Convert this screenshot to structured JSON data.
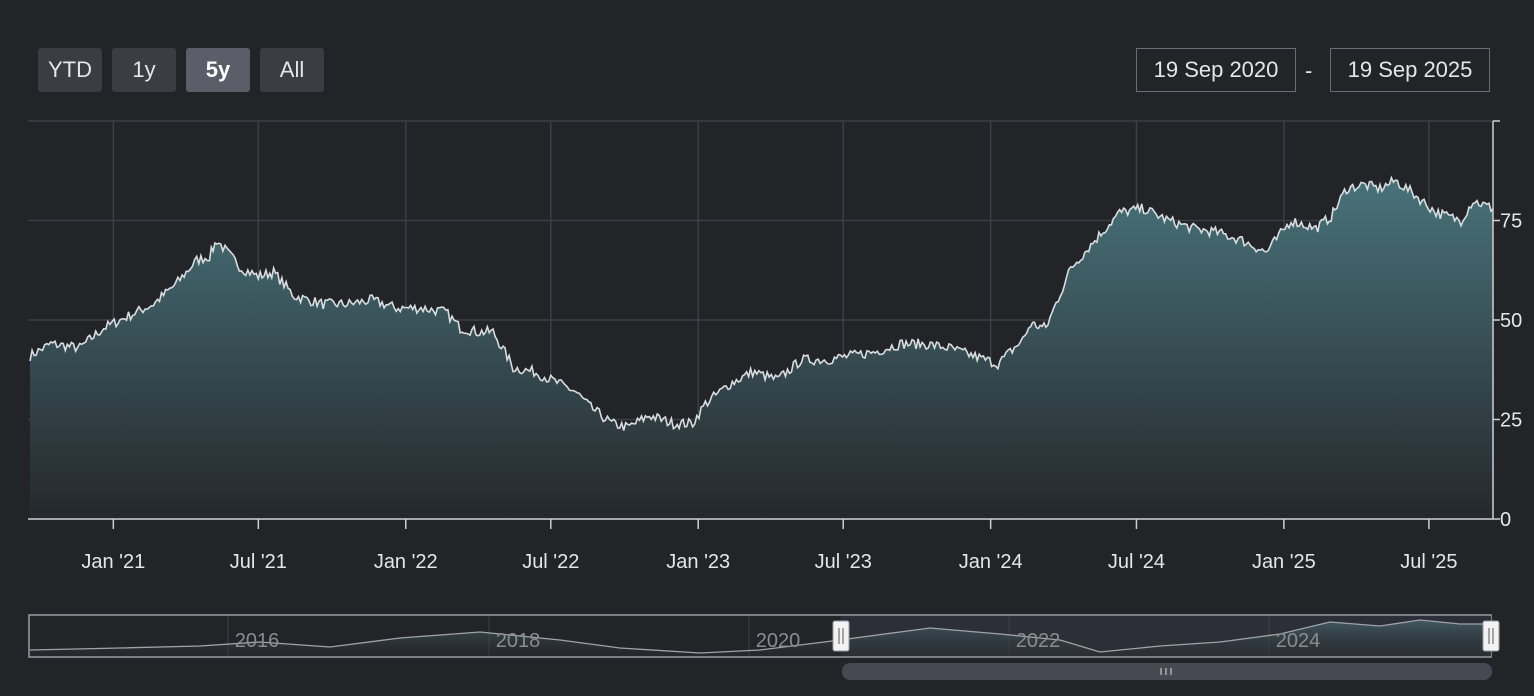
{
  "range_selector": {
    "buttons": [
      {
        "label": "YTD",
        "active": false
      },
      {
        "label": "1y",
        "active": false
      },
      {
        "label": "5y",
        "active": true
      },
      {
        "label": "All",
        "active": false
      }
    ]
  },
  "date_range": {
    "from": "19 Sep 2020",
    "separator": "-",
    "to": "19 Sep 2025"
  },
  "colors": {
    "background": "#232428",
    "line": "#d9dde0",
    "area_top": "#48727a",
    "area_bottom": "#25282c",
    "grid": "#3c3f46"
  },
  "chart_data": {
    "type": "area",
    "title": "",
    "xlabel": "",
    "ylabel": "",
    "x_range": [
      "2020-09-19",
      "2025-09-19"
    ],
    "ylim": [
      0,
      100
    ],
    "y_ticks": [
      0,
      25,
      50,
      75
    ],
    "y_tick_labels": [
      "0",
      "25",
      "50",
      "75"
    ],
    "x_ticks": [
      "2021-01-01",
      "2021-07-01",
      "2022-01-01",
      "2022-07-01",
      "2023-01-01",
      "2023-07-01",
      "2024-01-01",
      "2024-07-01",
      "2025-01-01",
      "2025-07-01"
    ],
    "x_tick_labels": [
      "Jan '21",
      "Jul '21",
      "Jan '22",
      "Jul '22",
      "Jan '23",
      "Jul '23",
      "Jan '24",
      "Jul '24",
      "Jan '25",
      "Jul '25"
    ],
    "grid": true,
    "x": [
      "2020-09-19",
      "2020-10-15",
      "2020-11-20",
      "2020-12-20",
      "2021-01-20",
      "2021-02-20",
      "2021-03-20",
      "2021-04-15",
      "2021-05-01",
      "2021-05-10",
      "2021-06-10",
      "2021-07-01",
      "2021-07-20",
      "2021-08-15",
      "2021-09-20",
      "2021-10-20",
      "2021-11-20",
      "2021-12-20",
      "2022-01-20",
      "2022-02-20",
      "2022-03-10",
      "2022-04-01",
      "2022-04-20",
      "2022-05-10",
      "2022-05-15",
      "2022-06-10",
      "2022-07-01",
      "2022-08-01",
      "2022-08-20",
      "2022-09-15",
      "2022-10-05",
      "2022-11-01",
      "2022-12-01",
      "2022-12-25",
      "2023-01-10",
      "2023-02-10",
      "2023-03-10",
      "2023-04-10",
      "2023-05-10",
      "2023-06-10",
      "2023-07-10",
      "2023-08-10",
      "2023-09-10",
      "2023-10-10",
      "2023-11-10",
      "2023-12-10",
      "2024-01-10",
      "2024-02-10",
      "2024-02-20",
      "2024-03-10",
      "2024-04-10",
      "2024-05-10",
      "2024-06-10",
      "2024-07-10",
      "2024-08-10",
      "2024-09-10",
      "2024-10-10",
      "2024-11-10",
      "2024-12-10",
      "2025-01-10",
      "2025-02-10",
      "2025-03-01",
      "2025-03-20",
      "2025-04-10",
      "2025-05-01",
      "2025-05-20",
      "2025-06-10",
      "2025-07-10",
      "2025-08-10",
      "2025-08-25",
      "2025-09-19"
    ],
    "series": [
      {
        "values": [
          41,
          44,
          43,
          48,
          51,
          54,
          59,
          65,
          66,
          70,
          63,
          61,
          62,
          56,
          54,
          54,
          55,
          53,
          53,
          52,
          48,
          47,
          47,
          40,
          38,
          37,
          35,
          32,
          28,
          24,
          23,
          26,
          24,
          24,
          29,
          34,
          37,
          35,
          40,
          40,
          41,
          42,
          44,
          44,
          43,
          41,
          39,
          45,
          49,
          48,
          63,
          70,
          77,
          78,
          75,
          73,
          72,
          70,
          67,
          75,
          73,
          76,
          83,
          84,
          83,
          85,
          82,
          77,
          75,
          80,
          78
        ]
      }
    ]
  },
  "navigator": {
    "labels": [
      "2016",
      "2018",
      "2020",
      "2022",
      "2024"
    ]
  }
}
